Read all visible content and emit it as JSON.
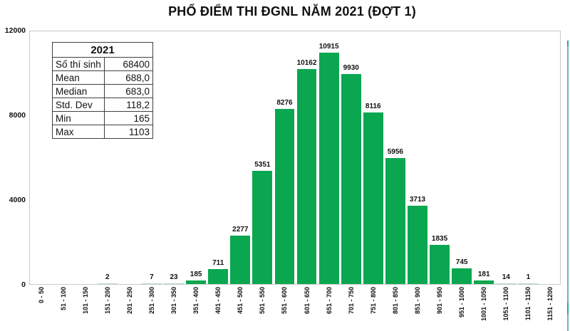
{
  "title": "PHỔ ĐIỂM THI ĐGNL NĂM 2021 (ĐỢT 1)",
  "stats_table": {
    "header": "2021",
    "rows": [
      {
        "label": "Số thí sinh",
        "value": "68400"
      },
      {
        "label": "Mean",
        "value": "688,0"
      },
      {
        "label": "Median",
        "value": "683,0"
      },
      {
        "label": "Std. Dev",
        "value": "118,2"
      },
      {
        "label": "Min",
        "value": "165"
      },
      {
        "label": "Max",
        "value": "1103"
      }
    ]
  },
  "chart_data": {
    "type": "bar",
    "title": "PHỔ ĐIỂM THI ĐGNL NĂM 2021 (ĐỢT 1)",
    "categories": [
      "0 - 50",
      "51 - 100",
      "101 - 150",
      "151 - 200",
      "201 - 250",
      "251 - 300",
      "301 - 350",
      "351 - 400",
      "401 - 450",
      "451 - 500",
      "501 - 550",
      "551 - 600",
      "601 - 650",
      "651 - 700",
      "701 - 750",
      "751 - 800",
      "801 - 850",
      "851 - 900",
      "901 - 950",
      "951 - 1000",
      "1001 - 1050",
      "1051 - 1100",
      "1101 - 1150",
      "1151 - 1200"
    ],
    "values": [
      0,
      0,
      0,
      2,
      0,
      7,
      23,
      185,
      711,
      2277,
      5351,
      8276,
      10162,
      10915,
      9930,
      8116,
      5956,
      3713,
      1835,
      745,
      181,
      14,
      1,
      0
    ],
    "xlabel": "",
    "ylabel": "",
    "ylim": [
      0,
      12000
    ],
    "yticks": [
      0,
      4000,
      8000,
      12000
    ],
    "grid": false,
    "legend": "none",
    "data_labels": true
  },
  "colors": {
    "bar": "#0ba750",
    "bar_faint": "#b5e0c6",
    "accent_edge": "#62bdb6",
    "accent_edge_dark": "#2ea69d",
    "plot_border": "#c9c9c9",
    "table_border": "#3f3f3f",
    "text": "#111111"
  }
}
